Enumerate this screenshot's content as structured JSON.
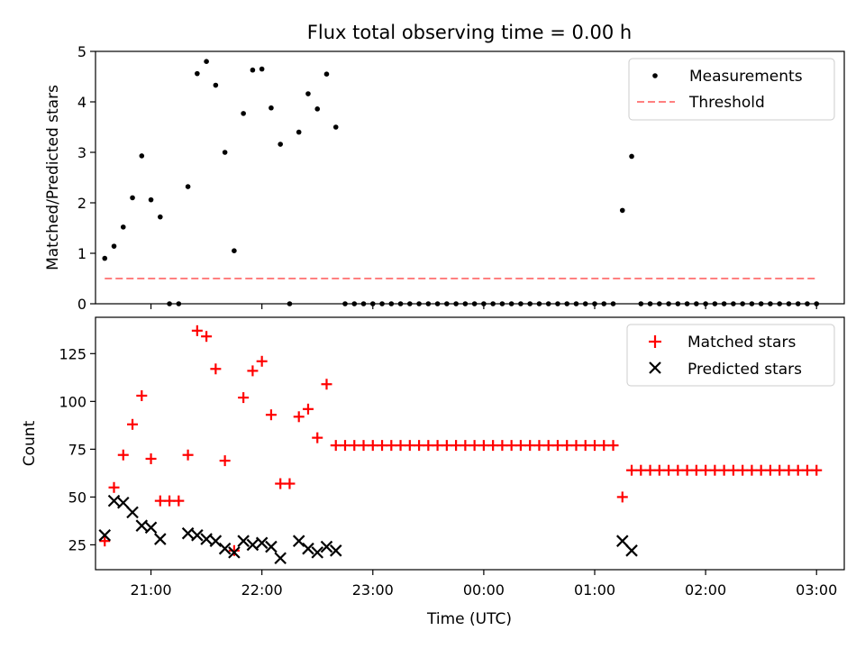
{
  "title": "Flux total observing time = 0.00 h",
  "chart_data": [
    {
      "type": "scatter",
      "ylabel": "Matched/Predicted stars",
      "xlabel": "",
      "xlim": [
        "20:30",
        "03:15"
      ],
      "ylim": [
        0,
        5
      ],
      "yticks": [
        0,
        1,
        2,
        3,
        4,
        5
      ],
      "legend_position": "top-right",
      "series": [
        {
          "name": "Measurements",
          "marker": "dot",
          "color": "#000000",
          "points": [
            [
              "20:35",
              0.9
            ],
            [
              "20:40",
              1.14
            ],
            [
              "20:45",
              1.52
            ],
            [
              "20:50",
              2.1
            ],
            [
              "20:55",
              2.93
            ],
            [
              "21:00",
              2.06
            ],
            [
              "21:05",
              1.72
            ],
            [
              "21:10",
              0
            ],
            [
              "21:15",
              0
            ],
            [
              "21:20",
              2.32
            ],
            [
              "21:25",
              4.56
            ],
            [
              "21:30",
              4.8
            ],
            [
              "21:35",
              4.33
            ],
            [
              "21:40",
              3.0
            ],
            [
              "21:45",
              1.05
            ],
            [
              "21:50",
              3.77
            ],
            [
              "21:55",
              4.63
            ],
            [
              "22:00",
              4.65
            ],
            [
              "22:05",
              3.88
            ],
            [
              "22:10",
              3.16
            ],
            [
              "22:15",
              0
            ],
            [
              "22:20",
              3.4
            ],
            [
              "22:25",
              4.16
            ],
            [
              "22:30",
              3.86
            ],
            [
              "22:35",
              4.55
            ],
            [
              "22:40",
              3.5
            ],
            [
              "22:45",
              0
            ],
            [
              "22:50",
              0
            ],
            [
              "22:55",
              0
            ],
            [
              "23:00",
              0
            ],
            [
              "23:05",
              0
            ],
            [
              "23:10",
              0
            ],
            [
              "23:15",
              0
            ],
            [
              "23:20",
              0
            ],
            [
              "23:25",
              0
            ],
            [
              "23:30",
              0
            ],
            [
              "23:35",
              0
            ],
            [
              "23:40",
              0
            ],
            [
              "23:45",
              0
            ],
            [
              "23:50",
              0
            ],
            [
              "23:55",
              0
            ],
            [
              "00:00",
              0
            ],
            [
              "00:05",
              0
            ],
            [
              "00:10",
              0
            ],
            [
              "00:15",
              0
            ],
            [
              "00:20",
              0
            ],
            [
              "00:25",
              0
            ],
            [
              "00:30",
              0
            ],
            [
              "00:35",
              0
            ],
            [
              "00:40",
              0
            ],
            [
              "00:45",
              0
            ],
            [
              "00:50",
              0
            ],
            [
              "00:55",
              0
            ],
            [
              "01:00",
              0
            ],
            [
              "01:05",
              0
            ],
            [
              "01:10",
              0
            ],
            [
              "01:15",
              1.85
            ],
            [
              "01:20",
              2.92
            ],
            [
              "01:25",
              0
            ],
            [
              "01:30",
              0
            ],
            [
              "01:35",
              0
            ],
            [
              "01:40",
              0
            ],
            [
              "01:45",
              0
            ],
            [
              "01:50",
              0
            ],
            [
              "01:55",
              0
            ],
            [
              "02:00",
              0
            ],
            [
              "02:05",
              0
            ],
            [
              "02:10",
              0
            ],
            [
              "02:15",
              0
            ],
            [
              "02:20",
              0
            ],
            [
              "02:25",
              0
            ],
            [
              "02:30",
              0
            ],
            [
              "02:35",
              0
            ],
            [
              "02:40",
              0
            ],
            [
              "02:45",
              0
            ],
            [
              "02:50",
              0
            ],
            [
              "02:55",
              0
            ],
            [
              "03:00",
              0
            ]
          ]
        },
        {
          "name": "Threshold",
          "marker": "dashed-line",
          "color": "#ff8080",
          "points": [
            [
              "20:35",
              0.5
            ],
            [
              "03:00",
              0.5
            ]
          ]
        }
      ]
    },
    {
      "type": "scatter",
      "ylabel": "Count",
      "xlabel": "Time (UTC)",
      "xlim": [
        "20:30",
        "03:15"
      ],
      "ylim": [
        12,
        144
      ],
      "yticks": [
        25,
        50,
        75,
        100,
        125
      ],
      "xticks": [
        "21:00",
        "22:00",
        "23:00",
        "00:00",
        "01:00",
        "02:00",
        "03:00"
      ],
      "legend_position": "top-right",
      "series": [
        {
          "name": "Matched stars",
          "marker": "plus",
          "color": "#ff0000",
          "points": [
            [
              "20:35",
              27
            ],
            [
              "20:40",
              55
            ],
            [
              "20:45",
              72
            ],
            [
              "20:50",
              88
            ],
            [
              "20:55",
              103
            ],
            [
              "21:00",
              70
            ],
            [
              "21:05",
              48
            ],
            [
              "21:10",
              48
            ],
            [
              "21:15",
              48
            ],
            [
              "21:20",
              72
            ],
            [
              "21:25",
              137
            ],
            [
              "21:30",
              134
            ],
            [
              "21:35",
              117
            ],
            [
              "21:40",
              69
            ],
            [
              "21:45",
              22
            ],
            [
              "21:50",
              102
            ],
            [
              "21:55",
              116
            ],
            [
              "22:00",
              121
            ],
            [
              "22:05",
              93
            ],
            [
              "22:10",
              57
            ],
            [
              "22:15",
              57
            ],
            [
              "22:20",
              92
            ],
            [
              "22:25",
              96
            ],
            [
              "22:30",
              81
            ],
            [
              "22:35",
              109
            ],
            [
              "22:40",
              77
            ],
            [
              "22:45",
              77
            ],
            [
              "22:50",
              77
            ],
            [
              "22:55",
              77
            ],
            [
              "23:00",
              77
            ],
            [
              "23:05",
              77
            ],
            [
              "23:10",
              77
            ],
            [
              "23:15",
              77
            ],
            [
              "23:20",
              77
            ],
            [
              "23:25",
              77
            ],
            [
              "23:30",
              77
            ],
            [
              "23:35",
              77
            ],
            [
              "23:40",
              77
            ],
            [
              "23:45",
              77
            ],
            [
              "23:50",
              77
            ],
            [
              "23:55",
              77
            ],
            [
              "00:00",
              77
            ],
            [
              "00:05",
              77
            ],
            [
              "00:10",
              77
            ],
            [
              "00:15",
              77
            ],
            [
              "00:20",
              77
            ],
            [
              "00:25",
              77
            ],
            [
              "00:30",
              77
            ],
            [
              "00:35",
              77
            ],
            [
              "00:40",
              77
            ],
            [
              "00:45",
              77
            ],
            [
              "00:50",
              77
            ],
            [
              "00:55",
              77
            ],
            [
              "01:00",
              77
            ],
            [
              "01:05",
              77
            ],
            [
              "01:10",
              77
            ],
            [
              "01:15",
              50
            ],
            [
              "01:20",
              64
            ],
            [
              "01:25",
              64
            ],
            [
              "01:30",
              64
            ],
            [
              "01:35",
              64
            ],
            [
              "01:40",
              64
            ],
            [
              "01:45",
              64
            ],
            [
              "01:50",
              64
            ],
            [
              "01:55",
              64
            ],
            [
              "02:00",
              64
            ],
            [
              "02:05",
              64
            ],
            [
              "02:10",
              64
            ],
            [
              "02:15",
              64
            ],
            [
              "02:20",
              64
            ],
            [
              "02:25",
              64
            ],
            [
              "02:30",
              64
            ],
            [
              "02:35",
              64
            ],
            [
              "02:40",
              64
            ],
            [
              "02:45",
              64
            ],
            [
              "02:50",
              64
            ],
            [
              "02:55",
              64
            ],
            [
              "03:00",
              64
            ]
          ]
        },
        {
          "name": "Predicted stars",
          "marker": "x",
          "color": "#000000",
          "points": [
            [
              "20:35",
              30
            ],
            [
              "20:40",
              48
            ],
            [
              "20:45",
              47
            ],
            [
              "20:50",
              42
            ],
            [
              "20:55",
              35
            ],
            [
              "21:00",
              34
            ],
            [
              "21:05",
              28
            ],
            [
              "21:20",
              31
            ],
            [
              "21:25",
              30
            ],
            [
              "21:30",
              28
            ],
            [
              "21:35",
              27
            ],
            [
              "21:40",
              23
            ],
            [
              "21:45",
              21
            ],
            [
              "21:50",
              27
            ],
            [
              "21:55",
              25
            ],
            [
              "22:00",
              26
            ],
            [
              "22:05",
              24
            ],
            [
              "22:10",
              18
            ],
            [
              "22:20",
              27
            ],
            [
              "22:25",
              23
            ],
            [
              "22:30",
              21
            ],
            [
              "22:35",
              24
            ],
            [
              "22:40",
              22
            ],
            [
              "01:15",
              27
            ],
            [
              "01:20",
              22
            ]
          ]
        }
      ]
    }
  ]
}
